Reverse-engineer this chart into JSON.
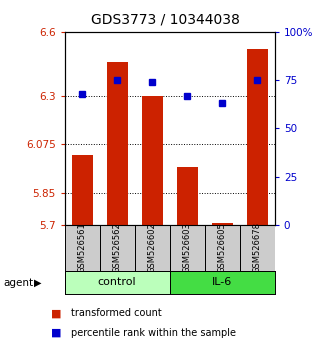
{
  "title": "GDS3773 / 10344038",
  "samples": [
    "GSM526561",
    "GSM526562",
    "GSM526602",
    "GSM526603",
    "GSM526605",
    "GSM526678"
  ],
  "bar_values": [
    6.025,
    6.46,
    6.3,
    5.97,
    5.71,
    6.52
  ],
  "dot_values": [
    68,
    75,
    74,
    67,
    63,
    75
  ],
  "bar_color": "#cc2200",
  "dot_color": "#0000cc",
  "bar_bottom": 5.7,
  "ylim_left": [
    5.7,
    6.6
  ],
  "ylim_right": [
    0,
    100
  ],
  "yticks_left": [
    5.7,
    5.85,
    6.075,
    6.3,
    6.6
  ],
  "yticks_right": [
    0,
    25,
    50,
    75,
    100
  ],
  "ytick_labels_right": [
    "0",
    "25",
    "50",
    "75",
    "100%"
  ],
  "hlines": [
    6.3,
    6.075,
    5.85
  ],
  "legend_bar_label": "transformed count",
  "legend_dot_label": "percentile rank within the sample",
  "title_fontsize": 10,
  "tick_fontsize": 7.5,
  "bar_width": 0.6,
  "control_color": "#bbffbb",
  "il6_color": "#44dd44",
  "sample_bg_color": "#cccccc"
}
